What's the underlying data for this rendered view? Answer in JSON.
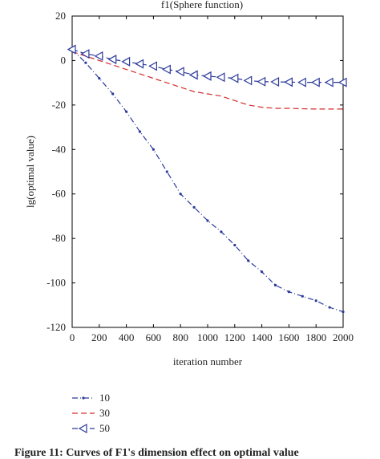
{
  "chart_data": {
    "type": "line",
    "title": "f1(Sphere function)",
    "xlabel": "iteration number",
    "ylabel": "lg(optimal value)",
    "xlim": [
      0,
      2000
    ],
    "ylim": [
      -120,
      20
    ],
    "xticks": [
      0,
      200,
      400,
      600,
      800,
      1000,
      1200,
      1400,
      1600,
      1800,
      2000
    ],
    "yticks": [
      20,
      0,
      -20,
      -40,
      -60,
      -80,
      -100,
      -120
    ],
    "grid": false,
    "legend_position": "below-left",
    "series": [
      {
        "name": "10",
        "color": "#2b3a9a",
        "line_style": "dash-dot",
        "marker": "point",
        "x": [
          0,
          100,
          200,
          300,
          400,
          500,
          600,
          700,
          800,
          900,
          1000,
          1100,
          1200,
          1300,
          1400,
          1500,
          1600,
          1700,
          1800,
          1900,
          2000
        ],
        "y": [
          5,
          -1,
          -8,
          -15,
          -23,
          -32,
          -40,
          -50,
          -60,
          -66,
          -72,
          -77,
          -83,
          -90,
          -95,
          -101,
          -104,
          -106,
          -108,
          -111,
          -113
        ]
      },
      {
        "name": "30",
        "color": "#d42a2a",
        "line_style": "dashed",
        "marker": "none",
        "x": [
          0,
          100,
          200,
          300,
          400,
          500,
          600,
          700,
          800,
          900,
          1000,
          1100,
          1200,
          1300,
          1400,
          1500,
          1600,
          1700,
          1800,
          1900,
          2000
        ],
        "y": [
          4,
          2,
          0,
          -2,
          -4,
          -6,
          -8,
          -10,
          -12,
          -14,
          -15,
          -16,
          -18,
          -20,
          -21,
          -21.5,
          -21.5,
          -21.7,
          -21.8,
          -21.8,
          -21.8
        ]
      },
      {
        "name": "50",
        "color": "#2b3a9a",
        "line_style": "dashed",
        "marker": "left-triangle",
        "x": [
          0,
          100,
          200,
          300,
          400,
          500,
          600,
          700,
          800,
          900,
          1000,
          1100,
          1200,
          1300,
          1400,
          1500,
          1600,
          1700,
          1800,
          1900,
          2000
        ],
        "y": [
          5,
          3,
          2,
          0.5,
          -0.5,
          -1.5,
          -2.5,
          -4,
          -5,
          -6.5,
          -7,
          -7.5,
          -8,
          -9,
          -9.5,
          -9.6,
          -9.7,
          -9.8,
          -9.8,
          -9.8,
          -9.8
        ]
      }
    ]
  },
  "caption": "Figure 11: Curves of F1's dimension effect on optimal value"
}
